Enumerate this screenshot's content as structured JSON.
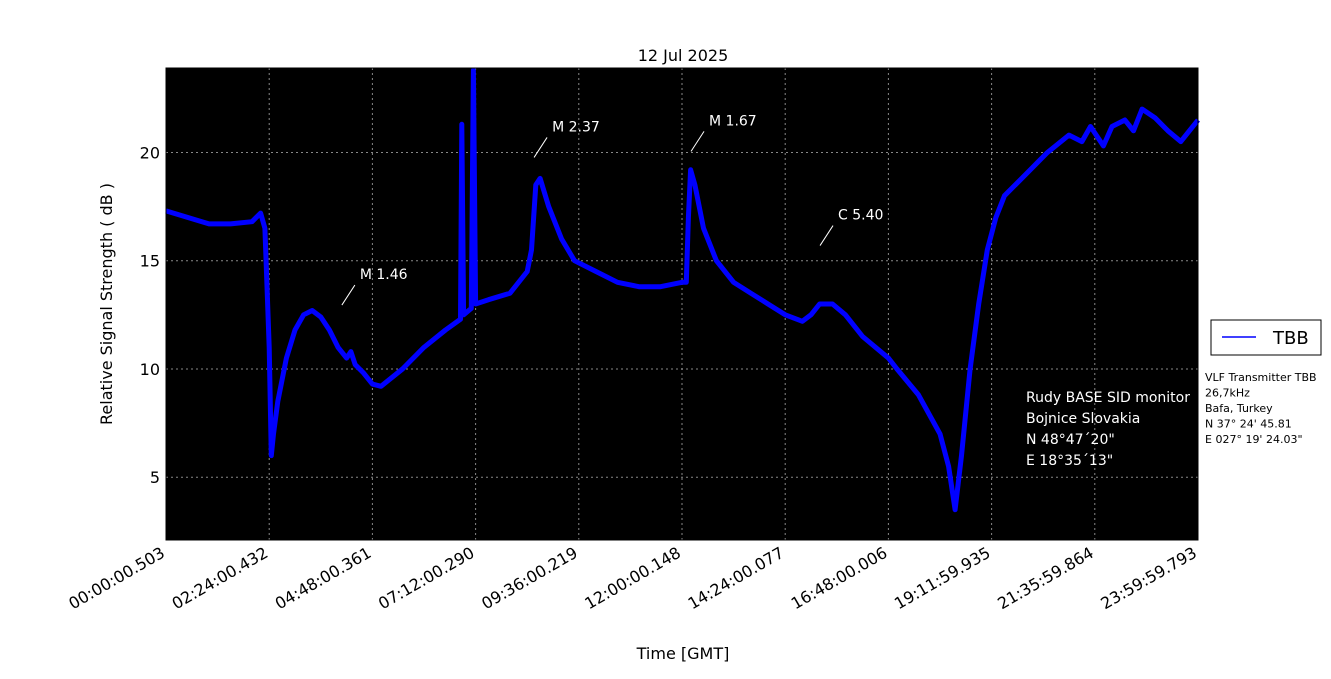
{
  "chart_data": {
    "type": "line",
    "title": "12 Jul 2025",
    "x_label": "Time [GMT]",
    "y_label": "Relative Signal Strength ( dB )",
    "x": [
      0.0,
      0.5,
      1.0,
      1.5,
      2.0,
      2.2,
      2.3,
      2.4,
      2.45,
      2.5,
      2.6,
      2.8,
      3.0,
      3.2,
      3.4,
      3.6,
      3.8,
      4.0,
      4.2,
      4.3,
      4.4,
      4.6,
      4.8,
      5.0,
      5.5,
      6.0,
      6.5,
      6.85,
      6.88,
      6.92,
      7.1,
      7.15,
      7.2,
      7.5,
      8.0,
      8.4,
      8.5,
      8.6,
      8.7,
      8.9,
      9.2,
      9.5,
      10.0,
      10.5,
      11.0,
      11.5,
      12.0,
      12.1,
      12.15,
      12.2,
      12.3,
      12.5,
      12.8,
      13.2,
      13.6,
      14.0,
      14.4,
      14.8,
      15.0,
      15.2,
      15.5,
      15.8,
      16.2,
      16.8,
      17.0,
      17.5,
      18.0,
      18.2,
      18.35,
      18.5,
      18.7,
      18.9,
      19.1,
      19.3,
      19.5,
      20.0,
      20.5,
      21.0,
      21.3,
      21.5,
      21.8,
      22.0,
      22.3,
      22.5,
      22.7,
      23.0,
      23.3,
      23.6,
      24.0
    ],
    "series": [
      {
        "name": "TBB",
        "color": "#0000ff",
        "values": [
          17.3,
          17.0,
          16.7,
          16.7,
          16.8,
          17.2,
          16.5,
          11,
          6,
          7,
          8.5,
          10.5,
          11.8,
          12.5,
          12.7,
          12.4,
          11.8,
          11.0,
          10.5,
          10.8,
          10.2,
          9.8,
          9.3,
          9.2,
          10,
          11,
          11.8,
          12.3,
          21.3,
          12.5,
          12.8,
          23.8,
          13,
          13.2,
          13.5,
          14.5,
          15.5,
          18.5,
          18.8,
          17.5,
          16,
          15,
          14.5,
          14,
          13.8,
          13.8,
          14,
          14,
          17,
          19.2,
          18.5,
          16.5,
          15,
          14,
          13.5,
          13,
          12.5,
          12.2,
          12.5,
          13,
          13,
          12.5,
          11.5,
          10.5,
          10,
          8.8,
          7,
          5.5,
          3.5,
          6,
          10,
          13,
          15.5,
          17,
          18,
          19,
          20,
          20.8,
          20.5,
          21.2,
          20.3,
          21.2,
          21.5,
          21,
          22,
          21.6,
          21,
          20.5,
          21.5
        ]
      }
    ],
    "xlim": [
      0.00014,
      23.99994
    ],
    "xticks": [
      {
        "value": 0.00014,
        "label": "00:00:00.503"
      },
      {
        "value": 2.40012,
        "label": "02:24:00.432"
      },
      {
        "value": 4.8001,
        "label": "04:48:00.361"
      },
      {
        "value": 7.20008,
        "label": "07:12:00.290"
      },
      {
        "value": 9.60006,
        "label": "09:36:00.219"
      },
      {
        "value": 12.00004,
        "label": "12:00:00.148"
      },
      {
        "value": 14.40002,
        "label": "14:24:00.077"
      },
      {
        "value": 16.8,
        "label": "16:48:00.006"
      },
      {
        "value": 19.19998,
        "label": "19:11:59.935"
      },
      {
        "value": 21.59996,
        "label": "21:35:59.864"
      },
      {
        "value": 23.99994,
        "label": "23:59:59.793"
      }
    ],
    "ylim": [
      2.1,
      23.9
    ],
    "yticks": [
      5,
      10,
      15,
      20
    ],
    "grid": true,
    "background": "#000000",
    "legend_position": "right",
    "annotations": [
      {
        "text": "M 1.46",
        "x": 4.09,
        "y": 12.95
      },
      {
        "text": "M 2.37",
        "x": 8.56,
        "y": 19.77
      },
      {
        "text": "M 1.67",
        "x": 12.21,
        "y": 20.05
      },
      {
        "text": "C 5.40",
        "x": 15.21,
        "y": 15.7
      }
    ],
    "station_info": [
      "Rudy BASE SID monitor",
      "Bojnice Slovakia",
      "N 48°47´20\"",
      "E 18°35´13\""
    ],
    "transmitter_info": [
      "VLF Transmitter TBB",
      "26,7kHz",
      "Bafa, Turkey",
      "N 37° 24' 45.81",
      "E 027° 19' 24.03\""
    ]
  }
}
